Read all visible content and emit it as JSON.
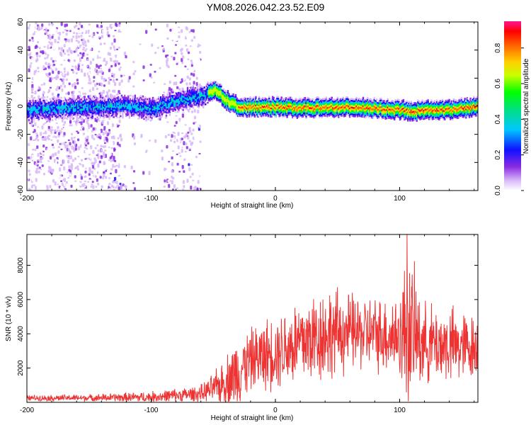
{
  "title": "YM08.2026.042.23.52.E09",
  "chart_data": [
    {
      "type": "heatmap",
      "name": "spectrogram",
      "xlabel": "Height of straight line (km)",
      "ylabel": "Frequency (Hz)",
      "xlim": [
        -200,
        163
      ],
      "ylim": [
        -60,
        60
      ],
      "xticks": [
        -200,
        -100,
        0,
        100
      ],
      "yticks": [
        -60,
        -40,
        -20,
        0,
        20,
        40,
        60
      ],
      "colorbar": {
        "label": "Normalized spectral amplitude",
        "range": [
          0,
          0.95
        ],
        "ticks": [
          0.0,
          0.2,
          0.4,
          0.6,
          0.8
        ]
      },
      "ridge": {
        "description_x": [
          -200,
          -150,
          -120,
          -100,
          -80,
          -70,
          -55,
          -48,
          -40,
          -30,
          -20,
          0,
          20,
          40,
          60,
          80,
          100,
          110,
          120,
          140,
          160
        ],
        "peak_frequency_hz": [
          -2,
          0,
          1,
          -1,
          4,
          6,
          9,
          12,
          5,
          0,
          0,
          0,
          -1,
          0,
          0,
          -1,
          -2,
          -3,
          -2,
          -2,
          0
        ]
      }
    },
    {
      "type": "line",
      "name": "snr",
      "xlabel": "Height of straight line (km)",
      "ylabel": "SNR (10 * v/v)",
      "xlim": [
        -200,
        163
      ],
      "ylim": [
        0,
        9800
      ],
      "xticks": [
        -200,
        -100,
        0,
        100
      ],
      "yticks": [
        2000,
        4000,
        6000,
        8000
      ],
      "color": "#ee3333",
      "envelope_x": [
        -200,
        -150,
        -100,
        -80,
        -60,
        -50,
        -40,
        -30,
        -20,
        -10,
        0,
        20,
        40,
        60,
        80,
        100,
        106,
        120,
        140,
        163
      ],
      "envelope_mean": [
        250,
        260,
        300,
        400,
        500,
        800,
        1200,
        1800,
        2500,
        2700,
        3000,
        3500,
        4000,
        4100,
        4000,
        3900,
        4200,
        3500,
        3300,
        3200
      ],
      "envelope_max": [
        450,
        500,
        700,
        900,
        1100,
        1800,
        3000,
        4400,
        4600,
        5200,
        5500,
        6800,
        7300,
        6800,
        6500,
        6900,
        9800,
        6200,
        6000,
        5400
      ]
    }
  ]
}
